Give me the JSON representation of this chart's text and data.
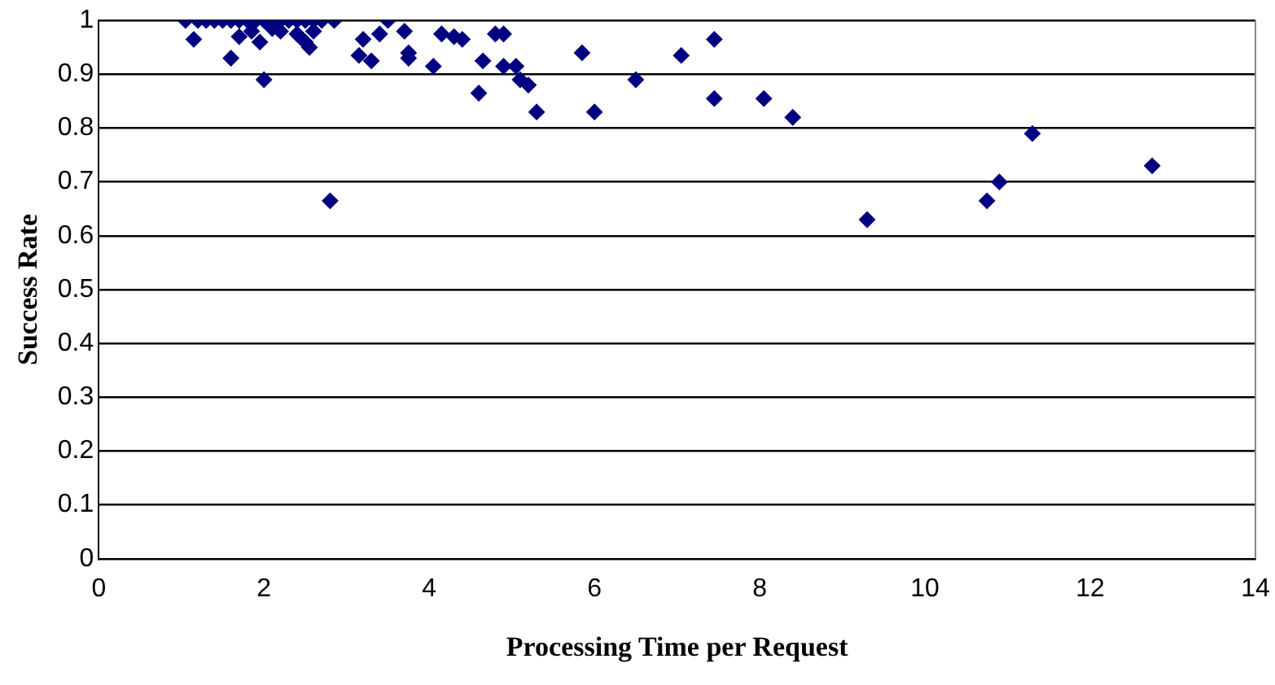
{
  "chart_data": {
    "type": "scatter",
    "xlabel": "Processing Time per Request",
    "ylabel": "Success Rate",
    "xlim": [
      0,
      14
    ],
    "xticks": [
      0,
      2,
      4,
      6,
      8,
      10,
      12,
      14
    ],
    "ylim": [
      0,
      1
    ],
    "yticks": [
      0,
      0.1,
      0.2,
      0.3,
      0.4,
      0.5,
      0.6,
      0.7,
      0.8,
      0.9,
      1
    ],
    "grid": "y",
    "marker": "diamond",
    "legend": false,
    "series": [
      {
        "color": "#000080",
        "x": [
          1.05,
          1.2,
          1.3,
          1.4,
          1.5,
          1.6,
          1.7,
          1.8,
          1.9,
          2.0,
          2.1,
          2.2,
          2.3,
          2.4,
          2.5,
          2.6,
          2.7,
          2.85,
          3.5,
          1.15,
          1.6,
          1.7,
          1.85,
          1.95,
          2.0,
          2.1,
          2.2,
          2.4,
          2.5,
          2.55,
          2.6,
          2.8,
          3.15,
          3.2,
          3.3,
          3.4,
          3.7,
          3.75,
          3.75,
          4.05,
          4.15,
          4.3,
          4.4,
          4.6,
          4.65,
          4.8,
          4.9,
          4.9,
          5.05,
          5.1,
          5.2,
          5.3,
          5.85,
          6.0,
          6.5,
          7.05,
          7.45,
          7.45,
          8.05,
          8.4,
          9.3,
          10.75,
          10.9,
          11.3,
          12.75
        ],
        "values": [
          1,
          1,
          1,
          1,
          1,
          1,
          1,
          1,
          1,
          1,
          1,
          1,
          1,
          1,
          1,
          1,
          1,
          1,
          1,
          0.965,
          0.93,
          0.97,
          0.98,
          0.96,
          0.89,
          0.985,
          0.98,
          0.975,
          0.96,
          0.95,
          0.98,
          0.665,
          0.935,
          0.965,
          0.925,
          0.975,
          0.98,
          0.94,
          0.93,
          0.915,
          0.975,
          0.97,
          0.965,
          0.865,
          0.925,
          0.975,
          0.975,
          0.915,
          0.915,
          0.89,
          0.88,
          0.83,
          0.94,
          0.83,
          0.89,
          0.935,
          0.965,
          0.855,
          0.855,
          0.82,
          0.63,
          0.665,
          0.7,
          0.79,
          0.73
        ]
      }
    ]
  }
}
